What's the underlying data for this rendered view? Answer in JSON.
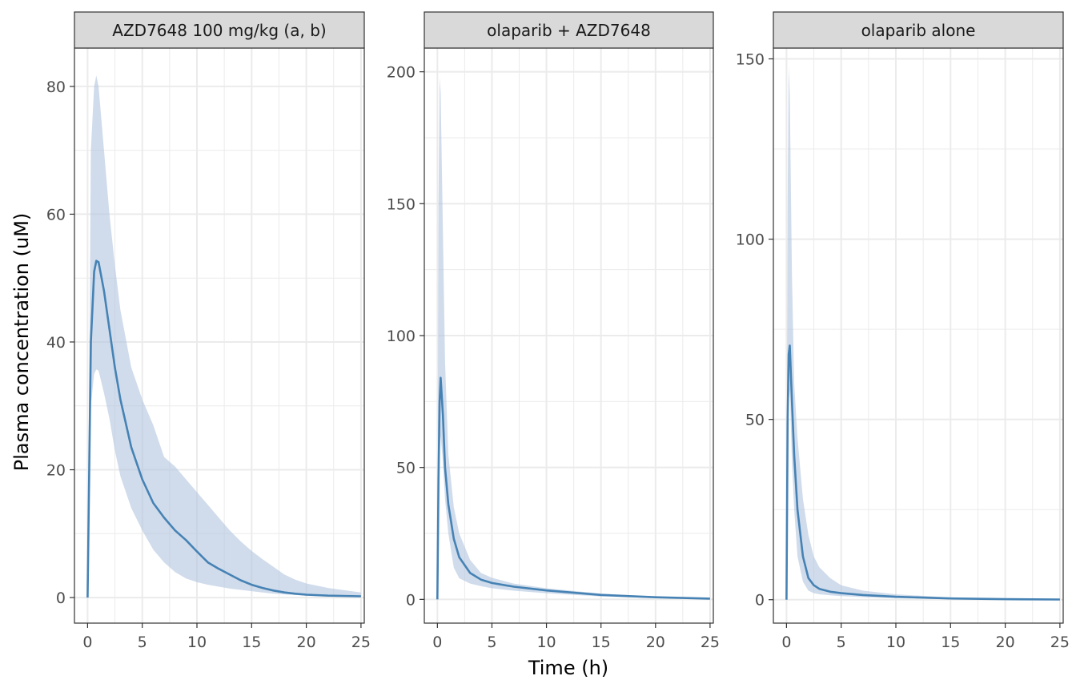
{
  "chart_data": {
    "type": "area",
    "xlabel": "Time (h)",
    "ylabel": "Plasma concentration (uM)",
    "grid": true,
    "legend": "none",
    "colors": {
      "line": "#4682b4",
      "band": "#b0c4de",
      "strip_bg": "#d9d9d9",
      "grid": "#ebebeb"
    },
    "panels": [
      {
        "title": "AZD7648 100 mg/kg (a, b)",
        "xlim": [
          -1.2,
          25.3
        ],
        "ylim": [
          -4.0,
          86.0
        ],
        "xticks": [
          0,
          5,
          10,
          15,
          20,
          25
        ],
        "yticks": [
          0,
          20,
          40,
          60,
          80
        ],
        "series": {
          "x": [
            0,
            0.3,
            0.6,
            0.8,
            1.0,
            1.5,
            2.0,
            2.5,
            3.0,
            4.0,
            5.0,
            6.0,
            7.0,
            8.0,
            9.0,
            10.0,
            11.0,
            12.0,
            13.0,
            14.0,
            15.0,
            16.0,
            17.0,
            18.0,
            19.0,
            20.0,
            22.0,
            25.0
          ],
          "mean": [
            0,
            40,
            51,
            52.7,
            52.5,
            48,
            42,
            36,
            31,
            23.5,
            18.5,
            14.8,
            12.5,
            10.5,
            9.0,
            7.2,
            5.5,
            4.5,
            3.6,
            2.7,
            2.0,
            1.5,
            1.1,
            0.8,
            0.6,
            0.45,
            0.3,
            0.2
          ],
          "lower": [
            0,
            30,
            35,
            35.7,
            35.5,
            32,
            28,
            23,
            19,
            14,
            10.5,
            7.5,
            5.5,
            4.0,
            3.0,
            2.4,
            2.0,
            1.7,
            1.4,
            1.2,
            1.0,
            0.8,
            0.6,
            0.5,
            0.4,
            0.3,
            0.2,
            0.1
          ],
          "upper": [
            0,
            70,
            80,
            81.7,
            80,
            70,
            60,
            52,
            45,
            36,
            31,
            27,
            22,
            20.5,
            18.5,
            16.5,
            14.5,
            12.5,
            10.5,
            8.8,
            7.3,
            6.0,
            4.8,
            3.6,
            2.8,
            2.2,
            1.5,
            0.8
          ]
        }
      },
      {
        "title": "olaparib + AZD7648",
        "xlim": [
          -1.2,
          25.3
        ],
        "ylim": [
          -9.0,
          209.0
        ],
        "xticks": [
          0,
          5,
          10,
          15,
          20,
          25
        ],
        "yticks": [
          0,
          50,
          100,
          150,
          200
        ],
        "series": {
          "x": [
            0,
            0.1,
            0.2,
            0.3,
            0.5,
            0.7,
            1.0,
            1.5,
            2.0,
            3.0,
            4.0,
            5.0,
            7.0,
            10.0,
            15.0,
            20.0,
            25.0
          ],
          "mean": [
            0,
            45,
            75,
            84,
            70,
            50,
            36,
            23,
            16,
            10,
            7.5,
            6.2,
            4.8,
            3.4,
            1.7,
            0.8,
            0.3
          ],
          "lower": [
            0,
            35,
            55,
            62,
            52,
            38,
            25,
            12,
            8,
            6,
            5.0,
            4.2,
            3.3,
            2.3,
            1.1,
            0.5,
            0.2
          ],
          "upper": [
            0,
            150,
            198,
            192,
            140,
            90,
            55,
            35,
            25,
            15,
            10,
            8.2,
            6.0,
            4.2,
            2.2,
            1.1,
            0.5
          ]
        }
      },
      {
        "title": "olaparib alone",
        "xlim": [
          -1.2,
          25.3
        ],
        "ylim": [
          -6.5,
          153.0
        ],
        "xticks": [
          0,
          5,
          10,
          15,
          20,
          25
        ],
        "yticks": [
          0,
          50,
          100,
          150
        ],
        "series": {
          "x": [
            0,
            0.1,
            0.2,
            0.3,
            0.5,
            0.7,
            1.0,
            1.5,
            2.0,
            2.5,
            3.0,
            4.0,
            5.0,
            7.0,
            10.0,
            15.0,
            20.0,
            25.0
          ],
          "mean": [
            0,
            50,
            68,
            70.5,
            55,
            40,
            25,
            12,
            6,
            4,
            3.0,
            2.2,
            1.8,
            1.3,
            0.8,
            0.35,
            0.15,
            0.05
          ],
          "lower": [
            0,
            40,
            55,
            58,
            38,
            25,
            12,
            5,
            2.5,
            1.8,
            1.5,
            1.2,
            1.0,
            0.7,
            0.4,
            0.15,
            0.05,
            0.0
          ],
          "upper": [
            0,
            110,
            148,
            140,
            90,
            60,
            45,
            28,
            18,
            12,
            9,
            6,
            4,
            2.5,
            1.5,
            0.6,
            0.3,
            0.1
          ]
        }
      }
    ]
  }
}
